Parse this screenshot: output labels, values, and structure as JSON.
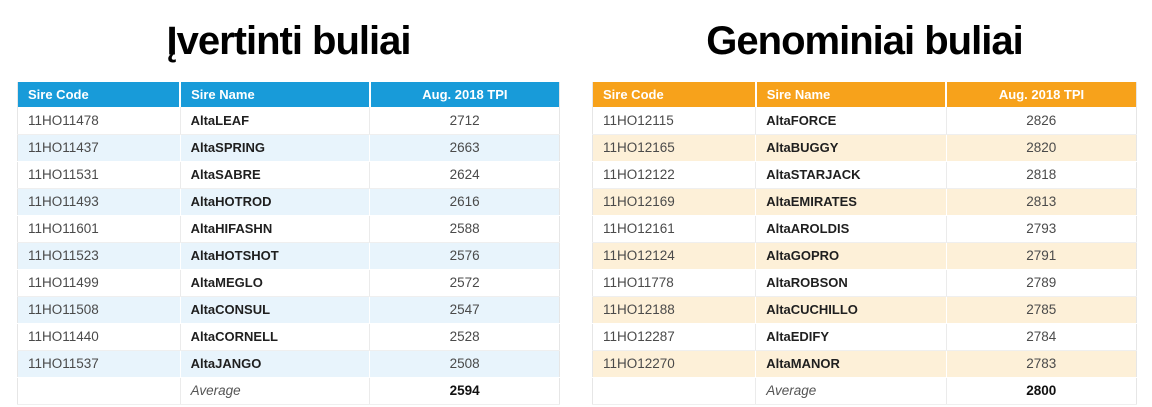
{
  "chart_data": [
    {
      "type": "table",
      "title": "Įvertinti buliai",
      "header_color": "#189BD9",
      "stripe_color": "#E8F4FC",
      "columns": [
        "Sire Code",
        "Sire Name",
        "Aug. 2018 TPI"
      ],
      "rows": [
        {
          "code": "11HO11478",
          "name": "AltaLEAF",
          "tpi": "2712"
        },
        {
          "code": "11HO11437",
          "name": "AltaSPRING",
          "tpi": "2663"
        },
        {
          "code": "11HO11531",
          "name": "AltaSABRE",
          "tpi": "2624"
        },
        {
          "code": "11HO11493",
          "name": "AltaHOTROD",
          "tpi": "2616"
        },
        {
          "code": "11HO11601",
          "name": "AltaHIFASHN",
          "tpi": "2588"
        },
        {
          "code": "11HO11523",
          "name": "AltaHOTSHOT",
          "tpi": "2576"
        },
        {
          "code": "11HO11499",
          "name": "AltaMEGLO",
          "tpi": "2572"
        },
        {
          "code": "11HO11508",
          "name": "AltaCONSUL",
          "tpi": "2547"
        },
        {
          "code": "11HO11440",
          "name": "AltaCORNELL",
          "tpi": "2528"
        },
        {
          "code": "11HO11537",
          "name": "AltaJANGO",
          "tpi": "2508"
        }
      ],
      "average_label": "Average",
      "average_value": "2594"
    },
    {
      "type": "table",
      "title": "Genominiai buliai",
      "header_color": "#F7A21B",
      "stripe_color": "#FDF0D8",
      "columns": [
        "Sire Code",
        "Sire Name",
        "Aug. 2018 TPI"
      ],
      "rows": [
        {
          "code": "11HO12115",
          "name": "AltaFORCE",
          "tpi": "2826"
        },
        {
          "code": "11HO12165",
          "name": "AltaBUGGY",
          "tpi": "2820"
        },
        {
          "code": "11HO12122",
          "name": "AltaSTARJACK",
          "tpi": "2818"
        },
        {
          "code": "11HO12169",
          "name": "AltaEMIRATES",
          "tpi": "2813"
        },
        {
          "code": "11HO12161",
          "name": "AltaAROLDIS",
          "tpi": "2793"
        },
        {
          "code": "11HO12124",
          "name": "AltaGOPRO",
          "tpi": "2791"
        },
        {
          "code": "11HO11778",
          "name": "AltaROBSON",
          "tpi": "2789"
        },
        {
          "code": "11HO12188",
          "name": "AltaCUCHILLO",
          "tpi": "2785"
        },
        {
          "code": "11HO12287",
          "name": "AltaEDIFY",
          "tpi": "2784"
        },
        {
          "code": "11HO12270",
          "name": "AltaMANOR",
          "tpi": "2783"
        }
      ],
      "average_label": "Average",
      "average_value": "2800"
    }
  ]
}
